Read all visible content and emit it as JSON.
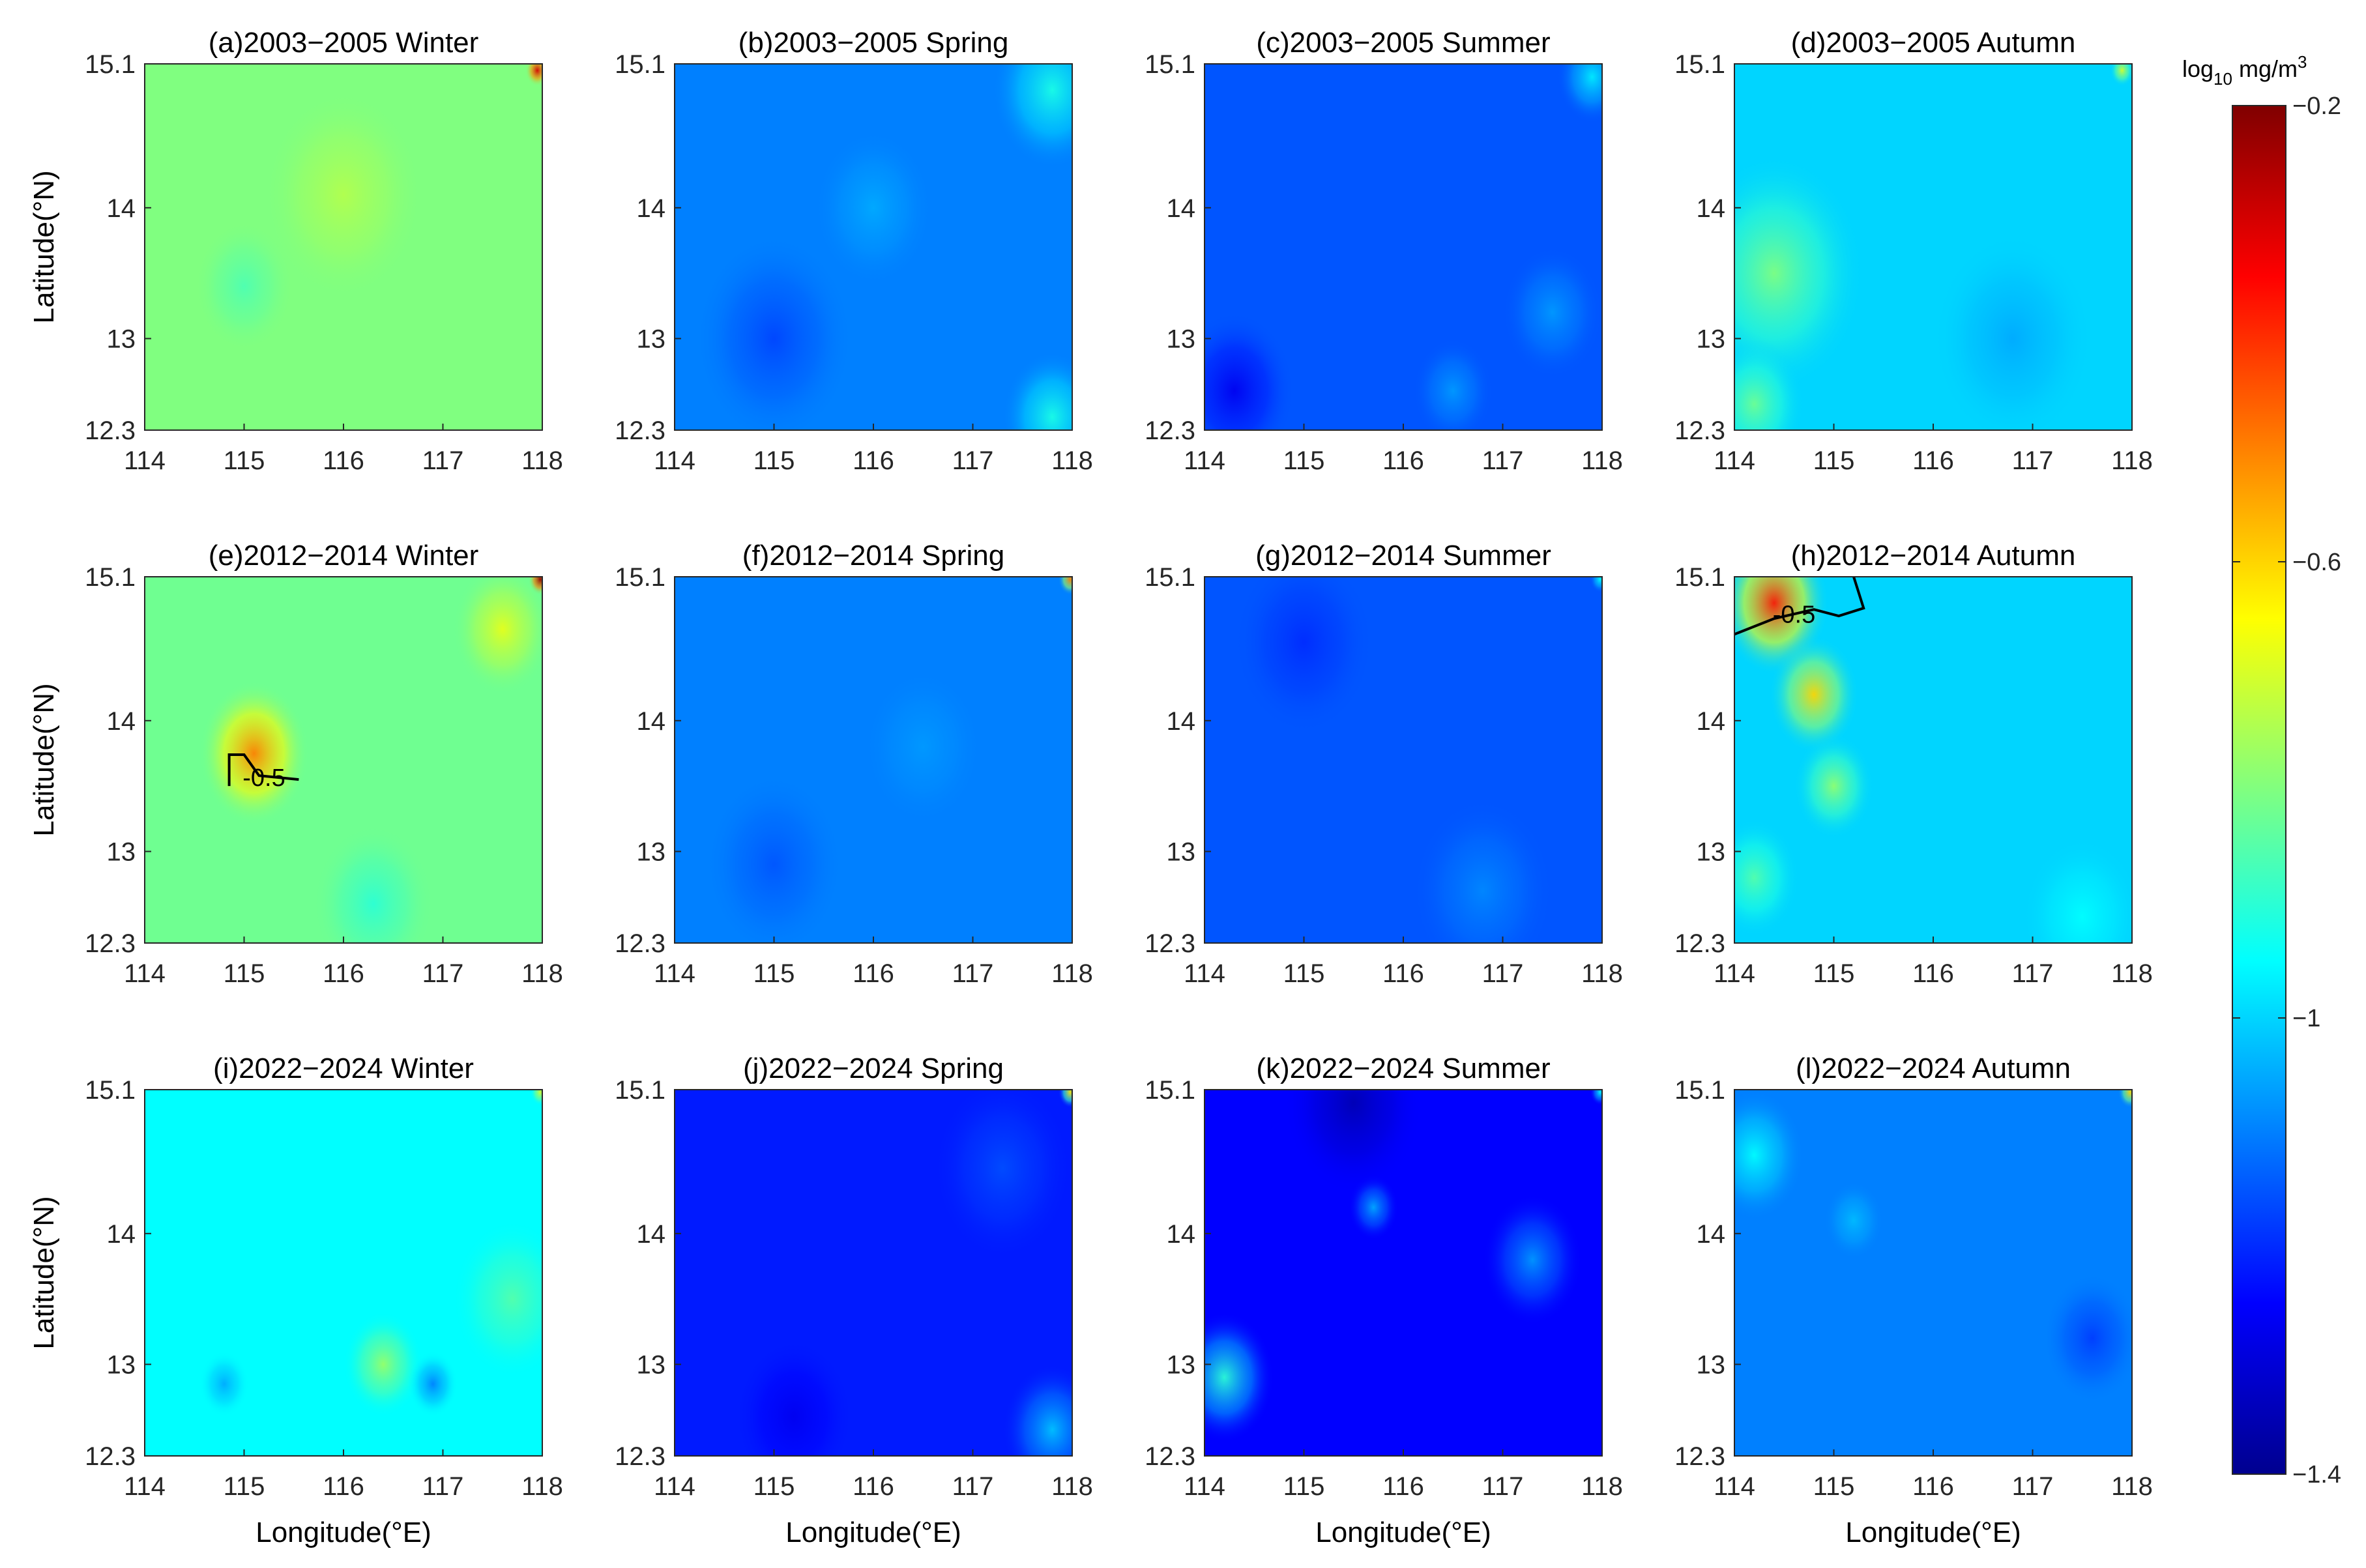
{
  "figure": {
    "xlabel": "Longitude(°E)",
    "ylabel": "Latitude(°N)",
    "x_ticks": [
      "114",
      "115",
      "116",
      "117",
      "118"
    ],
    "y_ticks": [
      "12.3",
      "13",
      "14",
      "15.1"
    ]
  },
  "colorbar": {
    "label_base": "log",
    "label_sub": "10",
    "label_unit": " mg/m",
    "label_sup": "3",
    "ticks": [
      "-0.2",
      "-0.6",
      "-1",
      "-1.4"
    ],
    "range": [
      -1.4,
      -0.2
    ],
    "colormap": [
      "#00008f",
      "#0000ff",
      "#0080ff",
      "#00ffff",
      "#80ff80",
      "#ffff00",
      "#ff8000",
      "#ff0000",
      "#800000"
    ]
  },
  "chart_data": [
    {
      "type": "heatmap",
      "title": "(a)2003−2005 Winter",
      "xlim": [
        114,
        118
      ],
      "ylim": [
        12.3,
        15.1
      ],
      "approx_level": -0.8,
      "features": [
        {
          "x": 116.0,
          "y": 14.1,
          "delta": 0.06,
          "r": 0.8
        },
        {
          "x": 117.95,
          "y": 15.05,
          "delta": 0.5,
          "r": 0.12
        },
        {
          "x": 115.0,
          "y": 13.4,
          "delta": -0.06,
          "r": 0.5
        }
      ],
      "contour": null
    },
    {
      "type": "heatmap",
      "title": "(b)2003−2005 Spring",
      "xlim": [
        114,
        118
      ],
      "ylim": [
        12.3,
        15.1
      ],
      "approx_level": -1.1,
      "features": [
        {
          "x": 117.8,
          "y": 14.9,
          "delta": 0.18,
          "r": 0.6
        },
        {
          "x": 117.8,
          "y": 12.4,
          "delta": 0.18,
          "r": 0.5
        },
        {
          "x": 116.0,
          "y": 14.0,
          "delta": 0.05,
          "r": 0.6
        },
        {
          "x": 115.0,
          "y": 13.0,
          "delta": -0.07,
          "r": 0.8
        }
      ],
      "contour": null
    },
    {
      "type": "heatmap",
      "title": "(c)2003−2005 Summer",
      "xlim": [
        114,
        118
      ],
      "ylim": [
        12.3,
        15.1
      ],
      "approx_level": -1.15,
      "features": [
        {
          "x": 117.9,
          "y": 15.0,
          "delta": 0.18,
          "r": 0.35
        },
        {
          "x": 114.3,
          "y": 12.6,
          "delta": -0.12,
          "r": 0.6
        },
        {
          "x": 117.5,
          "y": 13.2,
          "delta": 0.08,
          "r": 0.5
        },
        {
          "x": 116.5,
          "y": 12.6,
          "delta": 0.08,
          "r": 0.4
        }
      ],
      "contour": null
    },
    {
      "type": "heatmap",
      "title": "(d)2003−2005 Autumn",
      "xlim": [
        114,
        118
      ],
      "ylim": [
        12.3,
        15.1
      ],
      "approx_level": -1.0,
      "features": [
        {
          "x": 114.4,
          "y": 13.5,
          "delta": 0.2,
          "r": 0.9
        },
        {
          "x": 114.2,
          "y": 12.5,
          "delta": 0.18,
          "r": 0.5
        },
        {
          "x": 117.9,
          "y": 15.05,
          "delta": 0.3,
          "r": 0.12
        },
        {
          "x": 116.8,
          "y": 13.0,
          "delta": -0.05,
          "r": 0.8
        }
      ],
      "contour": null
    },
    {
      "type": "heatmap",
      "title": "(e)2012−2014 Winter",
      "xlim": [
        114,
        118
      ],
      "ylim": [
        12.3,
        15.1
      ],
      "approx_level": -0.82,
      "features": [
        {
          "x": 115.1,
          "y": 13.75,
          "delta": 0.32,
          "r": 0.55
        },
        {
          "x": 117.6,
          "y": 14.7,
          "delta": 0.14,
          "r": 0.5
        },
        {
          "x": 117.98,
          "y": 15.08,
          "delta": 0.6,
          "r": 0.12
        },
        {
          "x": 116.3,
          "y": 12.6,
          "delta": -0.08,
          "r": 0.6
        }
      ],
      "contour": {
        "label": "-0.5",
        "lon": 115.2,
        "lat": 13.5,
        "path": [
          [
            114.85,
            13.5
          ],
          [
            114.85,
            13.74
          ],
          [
            115.0,
            13.74
          ],
          [
            115.15,
            13.58
          ],
          [
            115.55,
            13.55
          ]
        ]
      }
    },
    {
      "type": "heatmap",
      "title": "(f)2012−2014 Spring",
      "xlim": [
        114,
        118
      ],
      "ylim": [
        12.3,
        15.1
      ],
      "approx_level": -1.1,
      "features": [
        {
          "x": 117.98,
          "y": 15.08,
          "delta": 0.6,
          "r": 0.12
        },
        {
          "x": 115.0,
          "y": 12.9,
          "delta": -0.05,
          "r": 0.7
        },
        {
          "x": 116.5,
          "y": 13.8,
          "delta": 0.03,
          "r": 0.6
        }
      ],
      "contour": null
    },
    {
      "type": "heatmap",
      "title": "(g)2012−2014 Summer",
      "xlim": [
        114,
        118
      ],
      "ylim": [
        12.3,
        15.1
      ],
      "approx_level": -1.15,
      "features": [
        {
          "x": 117.98,
          "y": 15.08,
          "delta": 0.2,
          "r": 0.1
        },
        {
          "x": 116.8,
          "y": 12.7,
          "delta": 0.06,
          "r": 0.7
        },
        {
          "x": 115.0,
          "y": 14.6,
          "delta": -0.05,
          "r": 0.7
        }
      ],
      "contour": null
    },
    {
      "type": "heatmap",
      "title": "(h)2012−2014 Autumn",
      "xlim": [
        114,
        118
      ],
      "ylim": [
        12.3,
        15.1
      ],
      "approx_level": -1.0,
      "features": [
        {
          "x": 114.4,
          "y": 14.9,
          "delta": 0.62,
          "r": 0.55
        },
        {
          "x": 114.8,
          "y": 14.2,
          "delta": 0.4,
          "r": 0.45
        },
        {
          "x": 115.0,
          "y": 13.5,
          "delta": 0.22,
          "r": 0.4
        },
        {
          "x": 114.2,
          "y": 12.8,
          "delta": 0.15,
          "r": 0.45
        },
        {
          "x": 117.5,
          "y": 12.5,
          "delta": 0.05,
          "r": 0.6
        }
      ],
      "contour": {
        "label": "-0.5",
        "lon": 114.6,
        "lat": 14.75,
        "path": [
          [
            114.0,
            14.66
          ],
          [
            114.4,
            14.78
          ],
          [
            114.8,
            14.85
          ],
          [
            115.05,
            14.8
          ],
          [
            115.3,
            14.86
          ],
          [
            115.2,
            15.1
          ]
        ]
      }
    },
    {
      "type": "heatmap",
      "title": "(i)2022−2024 Winter",
      "xlim": [
        114,
        118
      ],
      "ylim": [
        12.3,
        15.1
      ],
      "approx_level": -0.95,
      "features": [
        {
          "x": 116.4,
          "y": 13.0,
          "delta": 0.18,
          "r": 0.4
        },
        {
          "x": 117.7,
          "y": 13.5,
          "delta": 0.1,
          "r": 0.6
        },
        {
          "x": 114.8,
          "y": 12.85,
          "delta": -0.1,
          "r": 0.25
        },
        {
          "x": 116.9,
          "y": 12.85,
          "delta": -0.15,
          "r": 0.25
        },
        {
          "x": 117.98,
          "y": 15.08,
          "delta": 0.25,
          "r": 0.1
        }
      ],
      "contour": null
    },
    {
      "type": "heatmap",
      "title": "(j)2022−2024 Spring",
      "xlim": [
        114,
        118
      ],
      "ylim": [
        12.3,
        15.1
      ],
      "approx_level": -1.22,
      "features": [
        {
          "x": 117.98,
          "y": 15.08,
          "delta": 0.6,
          "r": 0.12
        },
        {
          "x": 117.8,
          "y": 12.5,
          "delta": 0.2,
          "r": 0.5
        },
        {
          "x": 117.3,
          "y": 14.5,
          "delta": 0.06,
          "r": 0.7
        },
        {
          "x": 115.2,
          "y": 12.6,
          "delta": -0.05,
          "r": 0.6
        }
      ],
      "contour": null
    },
    {
      "type": "heatmap",
      "title": "(k)2022−2024 Summer",
      "xlim": [
        114,
        118
      ],
      "ylim": [
        12.3,
        15.1
      ],
      "approx_level": -1.25,
      "features": [
        {
          "x": 114.2,
          "y": 12.9,
          "delta": 0.35,
          "r": 0.5
        },
        {
          "x": 115.7,
          "y": 14.2,
          "delta": 0.2,
          "r": 0.25
        },
        {
          "x": 117.3,
          "y": 13.8,
          "delta": 0.18,
          "r": 0.5
        },
        {
          "x": 115.5,
          "y": 15.0,
          "delta": -0.1,
          "r": 0.7
        },
        {
          "x": 117.98,
          "y": 15.08,
          "delta": 0.3,
          "r": 0.1
        }
      ],
      "contour": null
    },
    {
      "type": "heatmap",
      "title": "(l)2022−2024 Autumn",
      "xlim": [
        114,
        118
      ],
      "ylim": [
        12.3,
        15.1
      ],
      "approx_level": -1.1,
      "features": [
        {
          "x": 114.2,
          "y": 14.6,
          "delta": 0.15,
          "r": 0.5
        },
        {
          "x": 117.98,
          "y": 15.08,
          "delta": 0.5,
          "r": 0.12
        },
        {
          "x": 115.2,
          "y": 14.1,
          "delta": 0.07,
          "r": 0.3
        },
        {
          "x": 117.6,
          "y": 13.2,
          "delta": -0.08,
          "r": 0.5
        }
      ],
      "contour": null
    }
  ]
}
